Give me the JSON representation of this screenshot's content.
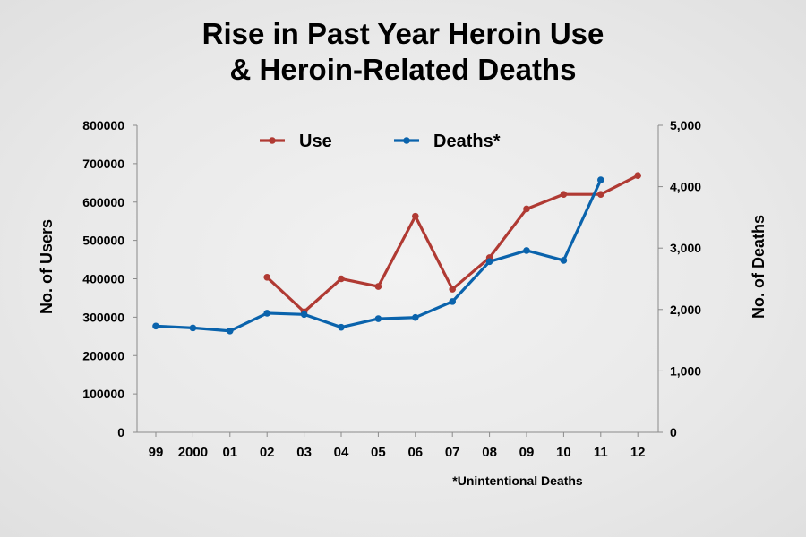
{
  "title_line1": "Rise in Past Year Heroin Use",
  "title_line2": "& Heroin-Related Deaths",
  "footnote": "*Unintentional Deaths",
  "chart_data": {
    "type": "line",
    "categories": [
      "99",
      "2000",
      "01",
      "02",
      "03",
      "04",
      "05",
      "06",
      "07",
      "08",
      "09",
      "10",
      "11",
      "12"
    ],
    "series": [
      {
        "name": "Use",
        "axis": "left",
        "color": "#b03a33",
        "values": [
          null,
          null,
          null,
          404000,
          314000,
          400000,
          380000,
          563000,
          373000,
          455000,
          582000,
          620000,
          620000,
          669000
        ]
      },
      {
        "name": "Deaths*",
        "axis": "right",
        "color": "#0a63ac",
        "values": [
          1730,
          1700,
          1650,
          1940,
          1920,
          1710,
          1850,
          1870,
          2130,
          2780,
          2960,
          2800,
          4110,
          null
        ]
      }
    ],
    "ylabel": "No. of Users",
    "y2label": "No. of Deaths",
    "ylim": [
      0,
      800000
    ],
    "y2lim": [
      0,
      5000
    ],
    "yticks": [
      "0",
      "100000",
      "200000",
      "300000",
      "400000",
      "500000",
      "600000",
      "700000",
      "800000"
    ],
    "y2ticks": [
      "0",
      "1,000",
      "2,000",
      "3,000",
      "4,000",
      "5,000"
    ],
    "legend_position": "top",
    "grid": false
  }
}
